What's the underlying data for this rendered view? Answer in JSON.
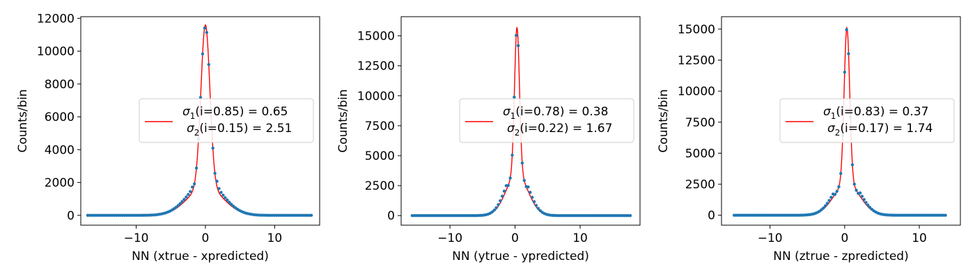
{
  "chart_data": [
    {
      "type": "scatter",
      "xlabel": "NN (xtrue - xpredicted)",
      "ylabel": "Counts/bin",
      "xlim": [
        -18,
        16.5
      ],
      "ylim": [
        -600,
        12100
      ],
      "xticks": [
        -10,
        0,
        10
      ],
      "yticks": [
        0,
        2000,
        4000,
        6000,
        8000,
        10000,
        12000
      ],
      "grid": false,
      "legend_position": "center-right",
      "fit": {
        "mu": 0.0,
        "total_peak": 11600,
        "sigma1": 0.65,
        "w1": 0.85,
        "sigma2": 2.51,
        "w2": 0.15,
        "color": "#ff0000"
      },
      "data_color": "#1f77b4",
      "x_range": [
        -17,
        15.3
      ],
      "legend": {
        "line1": {
          "sym": "σ",
          "sub": "1",
          "text": "(i=0.85) = 0.65"
        },
        "line2": {
          "sym": "σ",
          "sub": "2",
          "text": "(i=0.15) = 2.51"
        }
      }
    },
    {
      "type": "scatter",
      "xlabel": "NN (ytrue - ypredicted)",
      "ylabel": "Counts/bin",
      "xlim": [
        -17.5,
        19.2
      ],
      "ylim": [
        -800,
        16600
      ],
      "xticks": [
        -10,
        0,
        10
      ],
      "yticks": [
        0,
        2500,
        5000,
        7500,
        10000,
        12500,
        15000
      ],
      "grid": false,
      "legend_position": "center-right",
      "fit": {
        "mu": 0.3,
        "total_peak": 15700,
        "sigma1": 0.38,
        "w1": 0.78,
        "sigma2": 1.67,
        "w2": 0.22,
        "color": "#ff0000"
      },
      "data_color": "#1f77b4",
      "x_range": [
        -15.8,
        17.7
      ],
      "legend": {
        "line1": {
          "sym": "σ",
          "sub": "1",
          "text": "(i=0.78) = 0.38"
        },
        "line2": {
          "sym": "σ",
          "sub": "2",
          "text": "(i=0.22) = 1.67"
        }
      }
    },
    {
      "type": "scatter",
      "xlabel": "NN (ztrue - zpredicted)",
      "ylabel": "Counts/bin",
      "xlim": [
        -16.5,
        15.5
      ],
      "ylim": [
        -800,
        16000
      ],
      "xticks": [
        -10,
        0,
        10
      ],
      "yticks": [
        0,
        2500,
        5000,
        7500,
        10000,
        12500,
        15000
      ],
      "grid": false,
      "legend_position": "center-right",
      "fit": {
        "mu": 0.3,
        "total_peak": 15100,
        "sigma1": 0.37,
        "w1": 0.83,
        "sigma2": 1.74,
        "w2": 0.17,
        "color": "#ff0000"
      },
      "data_color": "#1f77b4",
      "x_range": [
        -14.8,
        13.5
      ],
      "legend": {
        "line1": {
          "sym": "σ",
          "sub": "1",
          "text": "(i=0.83) = 0.37"
        },
        "line2": {
          "sym": "σ",
          "sub": "2",
          "text": "(i=0.17) = 1.74"
        }
      }
    }
  ]
}
